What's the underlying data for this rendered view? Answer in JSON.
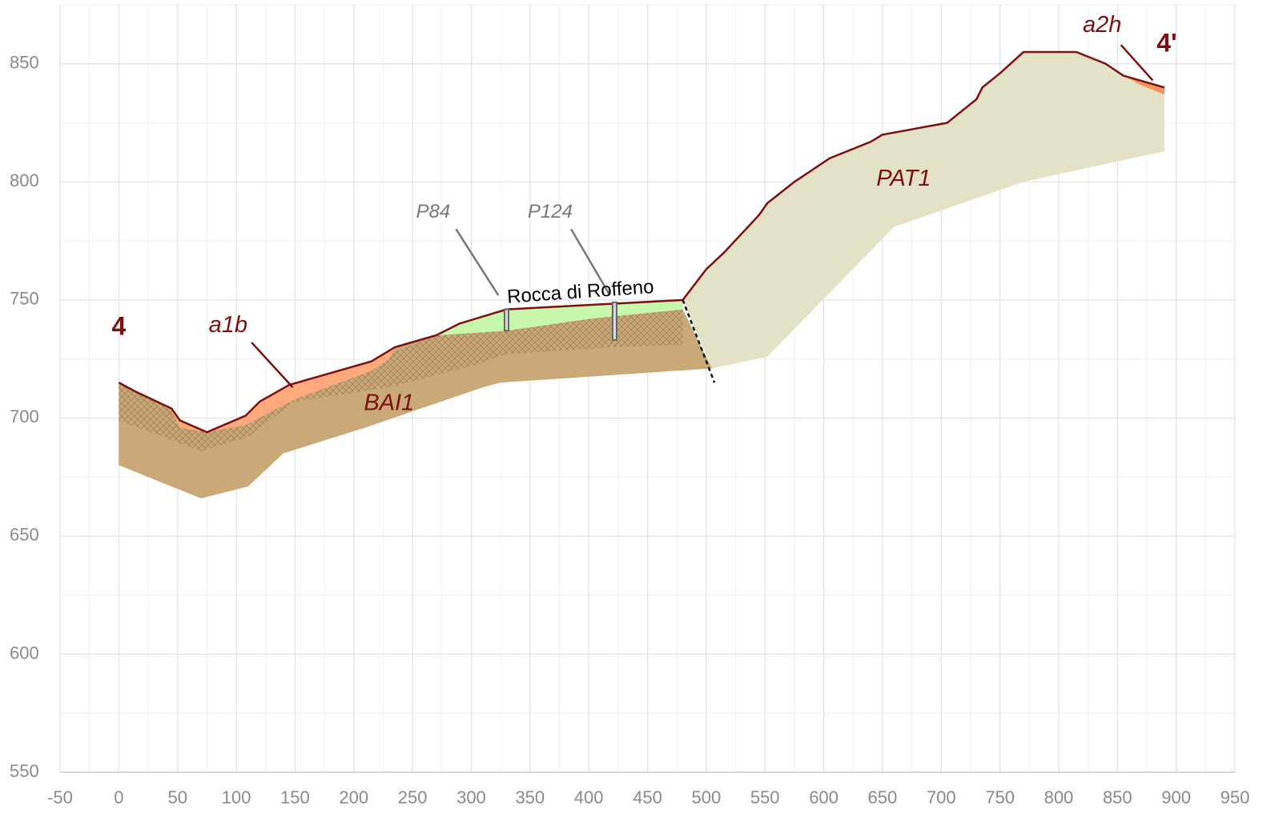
{
  "chart_data": {
    "type": "cross-section",
    "xlim": [
      -50,
      950
    ],
    "ylim": [
      550,
      875
    ],
    "xticks": [
      -50,
      0,
      50,
      100,
      150,
      200,
      250,
      300,
      350,
      400,
      450,
      500,
      550,
      600,
      650,
      700,
      750,
      800,
      850,
      900,
      950
    ],
    "yticks": [
      550,
      600,
      650,
      700,
      750,
      800,
      850
    ],
    "xminor": [
      -25,
      25,
      75,
      125,
      175,
      225,
      275,
      325,
      375,
      425,
      475,
      525,
      575,
      625,
      675,
      725,
      775,
      825,
      875,
      925
    ],
    "yminor": [
      575,
      625,
      675,
      725,
      775,
      825,
      875
    ],
    "grid": true,
    "layers": [
      {
        "name": "BAI1",
        "color": "#c9a978",
        "points": [
          [
            0,
            715
          ],
          [
            15,
            711
          ],
          [
            45,
            704
          ],
          [
            52,
            699
          ],
          [
            75,
            694
          ],
          [
            108,
            701
          ],
          [
            120,
            707
          ],
          [
            145,
            714
          ],
          [
            215,
            724
          ],
          [
            235,
            730
          ],
          [
            270,
            735
          ],
          [
            330,
            737
          ],
          [
            400,
            742
          ],
          [
            480,
            746
          ],
          [
            505,
            721
          ],
          [
            325,
            715
          ],
          [
            310,
            713
          ],
          [
            210,
            696
          ],
          [
            140,
            685
          ],
          [
            110,
            671
          ],
          [
            70,
            666
          ],
          [
            0,
            680
          ]
        ]
      },
      {
        "color": "#b8966a",
        "pattern": "crosshatch",
        "points": [
          [
            0,
            715
          ],
          [
            45,
            704
          ],
          [
            52,
            699
          ],
          [
            75,
            694
          ],
          [
            108,
            699
          ],
          [
            150,
            708
          ],
          [
            215,
            720
          ],
          [
            235,
            728
          ],
          [
            270,
            735
          ],
          [
            330,
            737
          ],
          [
            400,
            742
          ],
          [
            480,
            746
          ],
          [
            480,
            731
          ],
          [
            420,
            730
          ],
          [
            330,
            727
          ],
          [
            300,
            722
          ],
          [
            230,
            713
          ],
          [
            150,
            707
          ],
          [
            110,
            692
          ],
          [
            70,
            686
          ],
          [
            0,
            699
          ]
        ]
      },
      {
        "name": "a1b",
        "color": "#ffaa7c",
        "points": [
          [
            45,
            703
          ],
          [
            52,
            699
          ],
          [
            75,
            694
          ],
          [
            108,
            701
          ],
          [
            120,
            707
          ],
          [
            145,
            714
          ],
          [
            215,
            724
          ],
          [
            235,
            730
          ],
          [
            230,
            725
          ],
          [
            215,
            720
          ],
          [
            150,
            708
          ],
          [
            108,
            697
          ],
          [
            75,
            694
          ],
          [
            52,
            696
          ]
        ]
      },
      {
        "color": "#c6f7aa",
        "points": [
          [
            270,
            735
          ],
          [
            290,
            740
          ],
          [
            330,
            746
          ],
          [
            480,
            750
          ],
          [
            480,
            746
          ],
          [
            400,
            742
          ],
          [
            330,
            737
          ]
        ]
      },
      {
        "name": "PAT1",
        "color": "#e3e2c6",
        "points": [
          [
            480,
            750
          ],
          [
            500,
            763
          ],
          [
            515,
            770
          ],
          [
            545,
            786
          ],
          [
            552,
            791
          ],
          [
            575,
            800
          ],
          [
            605,
            810
          ],
          [
            640,
            817
          ],
          [
            650,
            820
          ],
          [
            705,
            825
          ],
          [
            730,
            835
          ],
          [
            735,
            840
          ],
          [
            750,
            846
          ],
          [
            770,
            855
          ],
          [
            815,
            855
          ],
          [
            840,
            850
          ],
          [
            855,
            845
          ],
          [
            890,
            840
          ],
          [
            890,
            813
          ],
          [
            770,
            800
          ],
          [
            660,
            781
          ],
          [
            552,
            726
          ],
          [
            505,
            721
          ]
        ]
      },
      {
        "name": "a2h",
        "color": "#f7925c",
        "points": [
          [
            855,
            845
          ],
          [
            890,
            840
          ],
          [
            890,
            837
          ],
          [
            870,
            841
          ]
        ]
      }
    ],
    "surface": {
      "color": "#7a1010",
      "points": [
        [
          0,
          715
        ],
        [
          15,
          711
        ],
        [
          45,
          704
        ],
        [
          52,
          699
        ],
        [
          75,
          694
        ],
        [
          108,
          701
        ],
        [
          120,
          707
        ],
        [
          145,
          714
        ],
        [
          215,
          724
        ],
        [
          235,
          730
        ],
        [
          270,
          735
        ],
        [
          290,
          740
        ],
        [
          330,
          746
        ],
        [
          480,
          750
        ],
        [
          500,
          763
        ],
        [
          515,
          770
        ],
        [
          545,
          786
        ],
        [
          552,
          791
        ],
        [
          575,
          800
        ],
        [
          605,
          810
        ],
        [
          640,
          817
        ],
        [
          650,
          820
        ],
        [
          705,
          825
        ],
        [
          730,
          835
        ],
        [
          735,
          840
        ],
        [
          750,
          846
        ],
        [
          770,
          855
        ],
        [
          815,
          855
        ],
        [
          840,
          850
        ],
        [
          855,
          845
        ],
        [
          890,
          840
        ]
      ]
    },
    "fault": {
      "points": [
        [
          480,
          750
        ],
        [
          507,
          715
        ]
      ]
    },
    "boreholes": [
      {
        "name": "P84",
        "x": 330,
        "top": 746,
        "bottom": 737
      },
      {
        "name": "P124",
        "x": 422,
        "top": 749,
        "bottom": 733
      }
    ],
    "place": "Rocca di Roffeno",
    "section_labels": [
      "4",
      "4'"
    ]
  }
}
